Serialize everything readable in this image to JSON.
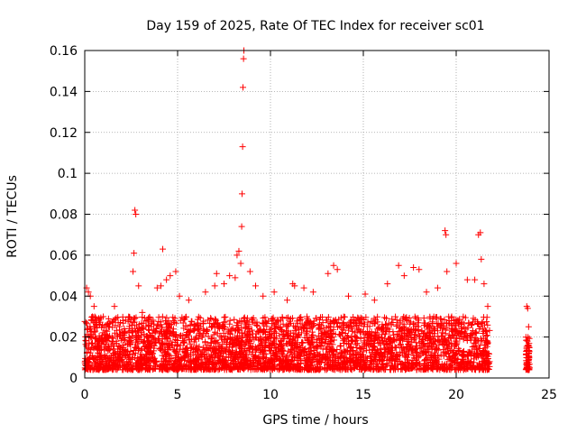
{
  "chart_data": {
    "type": "scatter",
    "title": "Day 159 of 2025, Rate Of TEC Index for receiver sc01",
    "xlabel": "GPS time / hours",
    "ylabel": "ROTI / TECUs",
    "xlim": [
      0,
      25
    ],
    "ylim": [
      0,
      0.16
    ],
    "xticks": [
      0,
      5,
      10,
      15,
      20,
      25
    ],
    "xtick_labels": [
      "0",
      "5",
      "10",
      "15",
      "20",
      "25"
    ],
    "yticks": [
      0,
      0.02,
      0.04,
      0.06,
      0.08,
      0.1,
      0.12,
      0.14,
      0.16
    ],
    "ytick_labels": [
      "0",
      "0.02",
      "0.04",
      "0.06",
      "0.08",
      "0.1",
      "0.12",
      "0.14",
      "0.16"
    ],
    "grid": true,
    "marker": "+",
    "color": "#ff0000",
    "note_dense_band": "Dense cluster of ROTI values between ~0.004 and ~0.03 TECU/s from 0 to 21.8 h, and ~0.004-0.02 around 23.8-24 h",
    "band_segments": [
      {
        "x_start": 0.0,
        "x_end": 21.8,
        "y_min": 0.004,
        "y_typical_max": 0.03
      },
      {
        "x_start": 23.75,
        "x_end": 23.95,
        "y_min": 0.004,
        "y_typical_max": 0.02
      }
    ],
    "series": [
      {
        "name": "ROTI",
        "points": [
          {
            "x": 0.1,
            "y": 0.044
          },
          {
            "x": 0.2,
            "y": 0.042
          },
          {
            "x": 0.3,
            "y": 0.04
          },
          {
            "x": 0.5,
            "y": 0.035
          },
          {
            "x": 1.0,
            "y": 0.03
          },
          {
            "x": 1.6,
            "y": 0.035
          },
          {
            "x": 2.6,
            "y": 0.052
          },
          {
            "x": 2.65,
            "y": 0.061
          },
          {
            "x": 2.7,
            "y": 0.082
          },
          {
            "x": 2.75,
            "y": 0.08
          },
          {
            "x": 2.9,
            "y": 0.045
          },
          {
            "x": 3.1,
            "y": 0.032
          },
          {
            "x": 3.9,
            "y": 0.044
          },
          {
            "x": 4.1,
            "y": 0.045
          },
          {
            "x": 4.2,
            "y": 0.063
          },
          {
            "x": 4.4,
            "y": 0.048
          },
          {
            "x": 4.6,
            "y": 0.05
          },
          {
            "x": 4.9,
            "y": 0.052
          },
          {
            "x": 5.1,
            "y": 0.04
          },
          {
            "x": 5.6,
            "y": 0.038
          },
          {
            "x": 6.5,
            "y": 0.042
          },
          {
            "x": 7.0,
            "y": 0.045
          },
          {
            "x": 7.1,
            "y": 0.051
          },
          {
            "x": 7.5,
            "y": 0.046
          },
          {
            "x": 7.8,
            "y": 0.05
          },
          {
            "x": 8.1,
            "y": 0.049
          },
          {
            "x": 8.2,
            "y": 0.06
          },
          {
            "x": 8.3,
            "y": 0.062
          },
          {
            "x": 8.4,
            "y": 0.056
          },
          {
            "x": 8.45,
            "y": 0.074
          },
          {
            "x": 8.47,
            "y": 0.09
          },
          {
            "x": 8.5,
            "y": 0.113
          },
          {
            "x": 8.52,
            "y": 0.142
          },
          {
            "x": 8.55,
            "y": 0.156
          },
          {
            "x": 8.57,
            "y": 0.16
          },
          {
            "x": 8.9,
            "y": 0.052
          },
          {
            "x": 9.2,
            "y": 0.045
          },
          {
            "x": 9.6,
            "y": 0.04
          },
          {
            "x": 10.2,
            "y": 0.042
          },
          {
            "x": 10.9,
            "y": 0.038
          },
          {
            "x": 11.2,
            "y": 0.046
          },
          {
            "x": 11.3,
            "y": 0.045
          },
          {
            "x": 11.8,
            "y": 0.044
          },
          {
            "x": 12.3,
            "y": 0.042
          },
          {
            "x": 13.1,
            "y": 0.051
          },
          {
            "x": 13.4,
            "y": 0.055
          },
          {
            "x": 13.6,
            "y": 0.053
          },
          {
            "x": 14.2,
            "y": 0.04
          },
          {
            "x": 15.1,
            "y": 0.041
          },
          {
            "x": 15.6,
            "y": 0.038
          },
          {
            "x": 16.3,
            "y": 0.046
          },
          {
            "x": 16.9,
            "y": 0.055
          },
          {
            "x": 17.2,
            "y": 0.05
          },
          {
            "x": 17.7,
            "y": 0.054
          },
          {
            "x": 18.0,
            "y": 0.053
          },
          {
            "x": 18.4,
            "y": 0.042
          },
          {
            "x": 19.0,
            "y": 0.044
          },
          {
            "x": 19.4,
            "y": 0.072
          },
          {
            "x": 19.45,
            "y": 0.07
          },
          {
            "x": 19.5,
            "y": 0.052
          },
          {
            "x": 20.0,
            "y": 0.056
          },
          {
            "x": 20.6,
            "y": 0.048
          },
          {
            "x": 21.0,
            "y": 0.048
          },
          {
            "x": 21.2,
            "y": 0.07
          },
          {
            "x": 21.3,
            "y": 0.071
          },
          {
            "x": 21.35,
            "y": 0.058
          },
          {
            "x": 21.5,
            "y": 0.046
          },
          {
            "x": 21.7,
            "y": 0.035
          },
          {
            "x": 23.8,
            "y": 0.035
          },
          {
            "x": 23.85,
            "y": 0.034
          },
          {
            "x": 23.9,
            "y": 0.025
          },
          {
            "x": 23.88,
            "y": 0.004
          }
        ]
      }
    ]
  }
}
